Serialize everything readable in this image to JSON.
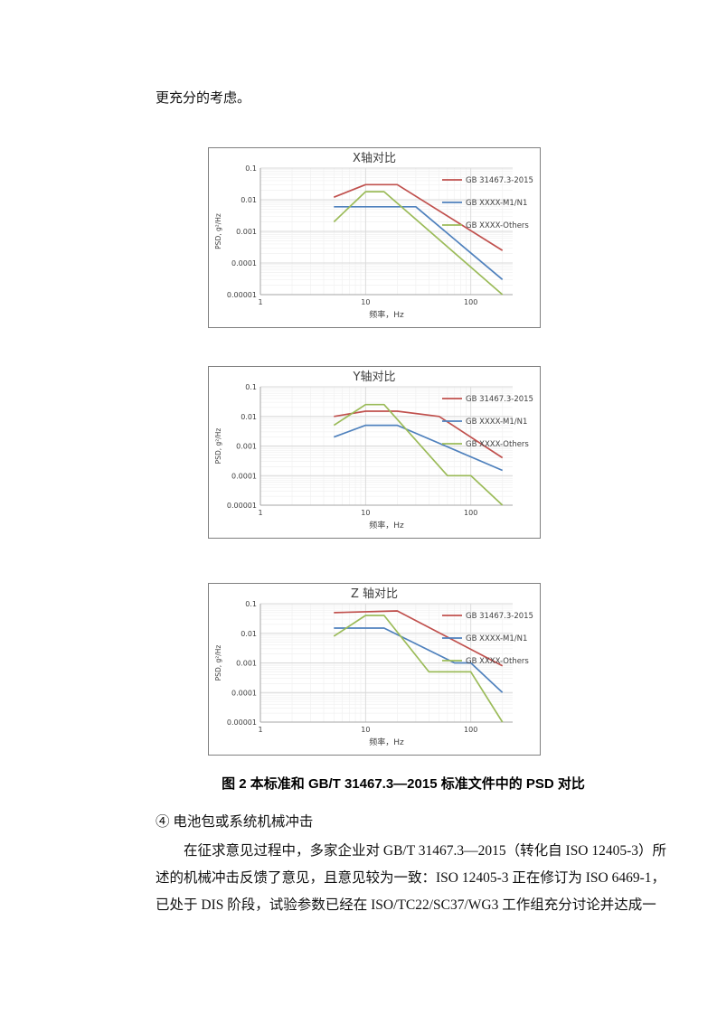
{
  "page": {
    "lead_text": "更充分的考虑。",
    "caption": "图 2 本标准和 GB/T 31467.3—2015 标准文件中的 PSD 对比",
    "item_line": "④  电池包或系统机械冲击",
    "paragraph_lines": [
      "在征求意见过程中，多家企业对 GB/T 31467.3—2015（转化自 ISO 12405-3）所",
      "述的机械冲击反馈了意见，且意见较为一致：ISO 12405-3 正在修订为 ISO 6469-1，",
      "已处于 DIS 阶段，试验参数已经在 ISO/TC22/SC37/WG3 工作组充分讨论并达成一"
    ]
  },
  "chart_data": [
    {
      "type": "line",
      "title": "X轴对比",
      "xlabel": "频率，Hz",
      "ylabel": "PSD, g²/Hz",
      "xlim": [
        1,
        250
      ],
      "ylim": [
        1e-05,
        0.1
      ],
      "xtick_labels": [
        "1",
        "10",
        "100"
      ],
      "xticks": [
        1,
        10,
        100
      ],
      "ytick_labels": [
        "0.1",
        "0.01",
        "0.001",
        "0.0001",
        "0.00001"
      ],
      "yticks": [
        0.1,
        0.01,
        0.001,
        0.0001,
        1e-05
      ],
      "grid": true,
      "legend_position": "top-right",
      "series": [
        {
          "name": "GB 31467.3-2015",
          "color": "#C0504D",
          "points": [
            [
              5,
              0.012
            ],
            [
              10,
              0.03
            ],
            [
              20,
              0.03
            ],
            [
              200,
              0.00025
            ]
          ]
        },
        {
          "name": "GB XXXX-M1/N1",
          "color": "#4F81BD",
          "points": [
            [
              5,
              0.006
            ],
            [
              30,
              0.006
            ],
            [
              200,
              3e-05
            ]
          ]
        },
        {
          "name": "GB XXXX-Others",
          "color": "#9BBB59",
          "points": [
            [
              5,
              0.002
            ],
            [
              10,
              0.018
            ],
            [
              15,
              0.018
            ],
            [
              200,
              1e-05
            ]
          ]
        }
      ]
    },
    {
      "type": "line",
      "title": "Y轴对比",
      "xlabel": "频率，Hz",
      "ylabel": "PSD, g²/Hz",
      "xlim": [
        1,
        250
      ],
      "ylim": [
        1e-05,
        0.1
      ],
      "xtick_labels": [
        "1",
        "10",
        "100"
      ],
      "xticks": [
        1,
        10,
        100
      ],
      "ytick_labels": [
        "0.1",
        "0.01",
        "0.001",
        "0.0001",
        "0.00001"
      ],
      "yticks": [
        0.1,
        0.01,
        0.001,
        0.0001,
        1e-05
      ],
      "grid": true,
      "legend_position": "top-right",
      "series": [
        {
          "name": "GB 31467.3-2015",
          "color": "#C0504D",
          "points": [
            [
              5,
              0.01
            ],
            [
              10,
              0.015
            ],
            [
              20,
              0.015
            ],
            [
              50,
              0.01
            ],
            [
              200,
              0.0004
            ]
          ]
        },
        {
          "name": "GB XXXX-M1/N1",
          "color": "#4F81BD",
          "points": [
            [
              5,
              0.002
            ],
            [
              10,
              0.005
            ],
            [
              20,
              0.005
            ],
            [
              200,
              0.00015
            ]
          ]
        },
        {
          "name": "GB XXXX-Others",
          "color": "#9BBB59",
          "points": [
            [
              5,
              0.005
            ],
            [
              10,
              0.025
            ],
            [
              15,
              0.025
            ],
            [
              60,
              0.0001
            ],
            [
              100,
              0.0001
            ],
            [
              200,
              1e-05
            ]
          ]
        }
      ]
    },
    {
      "type": "line",
      "title": "Z 轴对比",
      "xlabel": "频率，Hz",
      "ylabel": "PSD, g²/Hz",
      "xlim": [
        1,
        250
      ],
      "ylim": [
        1e-05,
        0.1
      ],
      "xtick_labels": [
        "1",
        "10",
        "100"
      ],
      "xticks": [
        1,
        10,
        100
      ],
      "ytick_labels": [
        "0.1",
        "0.01",
        "0.001",
        "0.0001",
        "0.00001"
      ],
      "yticks": [
        0.1,
        0.01,
        0.001,
        0.0001,
        1e-05
      ],
      "grid": true,
      "legend_position": "top-right",
      "series": [
        {
          "name": "GB 31467.3-2015",
          "color": "#C0504D",
          "points": [
            [
              5,
              0.05
            ],
            [
              20,
              0.057
            ],
            [
              200,
              0.0008
            ]
          ]
        },
        {
          "name": "GB XXXX-M1/N1",
          "color": "#4F81BD",
          "points": [
            [
              5,
              0.015
            ],
            [
              15,
              0.015
            ],
            [
              70,
              0.001
            ],
            [
              100,
              0.001
            ],
            [
              200,
              0.0001
            ]
          ]
        },
        {
          "name": "GB XXXX-Others",
          "color": "#9BBB59",
          "points": [
            [
              5,
              0.008
            ],
            [
              10,
              0.04
            ],
            [
              15,
              0.04
            ],
            [
              40,
              0.0005
            ],
            [
              100,
              0.0005
            ],
            [
              200,
              1e-05
            ]
          ]
        }
      ]
    }
  ]
}
